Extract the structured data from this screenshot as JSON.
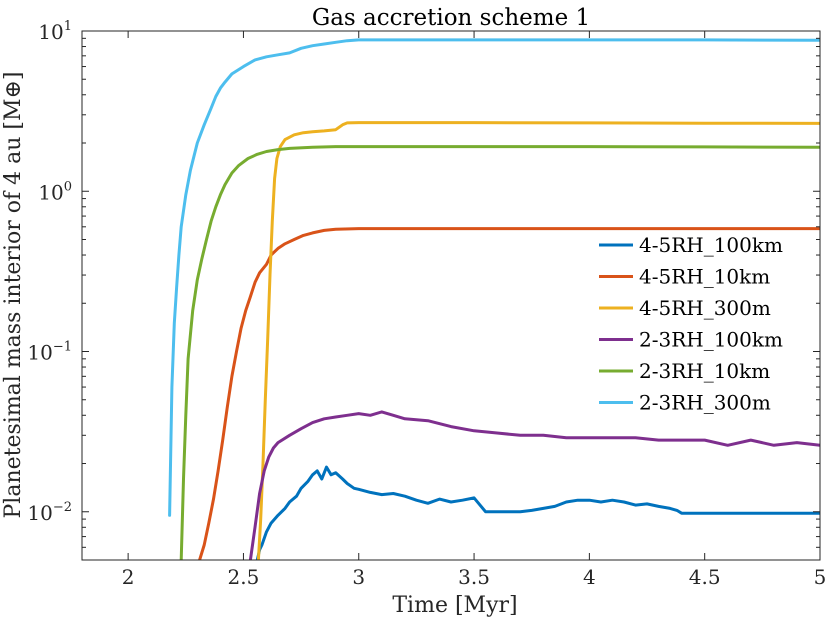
{
  "chart_data": {
    "type": "line",
    "title": "Gas accretion scheme 1",
    "xlabel": "Time [Myr]",
    "ylabel": "Planetesimal mass interior of 4 au [M⊕]",
    "xlim": [
      1.8,
      5.0
    ],
    "ylim": [
      0.005,
      10
    ],
    "yscale": "log",
    "xticks": [
      2,
      2.5,
      3,
      3.5,
      4,
      4.5,
      5
    ],
    "xtick_labels": [
      "2",
      "2.5",
      "3",
      "3.5",
      "4",
      "4.5",
      "5"
    ],
    "yticks": [
      {
        "value": 0.01,
        "base": "10",
        "exp": "−2"
      },
      {
        "value": 0.1,
        "base": "10",
        "exp": "−1"
      },
      {
        "value": 1,
        "base": "10",
        "exp": "0"
      },
      {
        "value": 10,
        "base": "10",
        "exp": "1"
      }
    ],
    "legend_location": "right",
    "series": [
      {
        "name": "4-5RH_100km",
        "color": "#0072BD",
        "points": [
          [
            2.56,
            0.005
          ],
          [
            2.57,
            0.0058
          ],
          [
            2.58,
            0.0062
          ],
          [
            2.6,
            0.0075
          ],
          [
            2.62,
            0.0085
          ],
          [
            2.65,
            0.0095
          ],
          [
            2.68,
            0.0105
          ],
          [
            2.7,
            0.0115
          ],
          [
            2.73,
            0.0125
          ],
          [
            2.75,
            0.014
          ],
          [
            2.78,
            0.0155
          ],
          [
            2.8,
            0.017
          ],
          [
            2.82,
            0.018
          ],
          [
            2.84,
            0.016
          ],
          [
            2.86,
            0.019
          ],
          [
            2.88,
            0.017
          ],
          [
            2.9,
            0.0175
          ],
          [
            2.93,
            0.016
          ],
          [
            2.95,
            0.015
          ],
          [
            2.98,
            0.014
          ],
          [
            3.0,
            0.0138
          ],
          [
            3.05,
            0.0132
          ],
          [
            3.1,
            0.0128
          ],
          [
            3.15,
            0.013
          ],
          [
            3.2,
            0.0125
          ],
          [
            3.25,
            0.0118
          ],
          [
            3.3,
            0.0113
          ],
          [
            3.35,
            0.012
          ],
          [
            3.4,
            0.0115
          ],
          [
            3.45,
            0.0118
          ],
          [
            3.5,
            0.0122
          ],
          [
            3.55,
            0.01
          ],
          [
            3.6,
            0.01
          ],
          [
            3.65,
            0.01
          ],
          [
            3.7,
            0.01
          ],
          [
            3.75,
            0.0102
          ],
          [
            3.8,
            0.0105
          ],
          [
            3.85,
            0.0108
          ],
          [
            3.9,
            0.0115
          ],
          [
            3.95,
            0.0118
          ],
          [
            4.0,
            0.0118
          ],
          [
            4.05,
            0.0115
          ],
          [
            4.1,
            0.0118
          ],
          [
            4.15,
            0.0115
          ],
          [
            4.2,
            0.011
          ],
          [
            4.25,
            0.0112
          ],
          [
            4.3,
            0.0108
          ],
          [
            4.35,
            0.0105
          ],
          [
            4.38,
            0.0102
          ],
          [
            4.4,
            0.0098
          ],
          [
            4.5,
            0.0098
          ],
          [
            4.6,
            0.0098
          ],
          [
            4.7,
            0.0098
          ],
          [
            4.8,
            0.0098
          ],
          [
            4.9,
            0.0098
          ],
          [
            5.0,
            0.0098
          ]
        ]
      },
      {
        "name": "4-5RH_10km",
        "color": "#D95319",
        "points": [
          [
            2.31,
            0.005
          ],
          [
            2.33,
            0.0062
          ],
          [
            2.35,
            0.0085
          ],
          [
            2.37,
            0.012
          ],
          [
            2.39,
            0.018
          ],
          [
            2.41,
            0.028
          ],
          [
            2.43,
            0.045
          ],
          [
            2.45,
            0.07
          ],
          [
            2.47,
            0.1
          ],
          [
            2.49,
            0.14
          ],
          [
            2.51,
            0.18
          ],
          [
            2.53,
            0.22
          ],
          [
            2.55,
            0.27
          ],
          [
            2.57,
            0.31
          ],
          [
            2.6,
            0.35
          ],
          [
            2.62,
            0.4
          ],
          [
            2.65,
            0.44
          ],
          [
            2.68,
            0.47
          ],
          [
            2.72,
            0.5
          ],
          [
            2.76,
            0.53
          ],
          [
            2.8,
            0.55
          ],
          [
            2.85,
            0.57
          ],
          [
            2.9,
            0.58
          ],
          [
            3.0,
            0.585
          ],
          [
            3.5,
            0.585
          ],
          [
            4.0,
            0.585
          ],
          [
            4.5,
            0.585
          ],
          [
            5.0,
            0.585
          ]
        ]
      },
      {
        "name": "4-5RH_300m",
        "color": "#EDB120",
        "points": [
          [
            2.565,
            0.005
          ],
          [
            2.575,
            0.009
          ],
          [
            2.585,
            0.02
          ],
          [
            2.595,
            0.05
          ],
          [
            2.605,
            0.12
          ],
          [
            2.615,
            0.3
          ],
          [
            2.625,
            0.65
          ],
          [
            2.635,
            1.2
          ],
          [
            2.645,
            1.6
          ],
          [
            2.66,
            1.9
          ],
          [
            2.68,
            2.1
          ],
          [
            2.72,
            2.25
          ],
          [
            2.76,
            2.32
          ],
          [
            2.8,
            2.35
          ],
          [
            2.85,
            2.38
          ],
          [
            2.9,
            2.42
          ],
          [
            2.93,
            2.6
          ],
          [
            2.95,
            2.67
          ],
          [
            3.0,
            2.68
          ],
          [
            3.5,
            2.68
          ],
          [
            4.0,
            2.67
          ],
          [
            4.5,
            2.66
          ],
          [
            5.0,
            2.65
          ]
        ]
      },
      {
        "name": "2-3RH_100km",
        "color": "#7E2F8E",
        "points": [
          [
            2.53,
            0.005
          ],
          [
            2.55,
            0.008
          ],
          [
            2.57,
            0.013
          ],
          [
            2.59,
            0.018
          ],
          [
            2.61,
            0.022
          ],
          [
            2.63,
            0.025
          ],
          [
            2.65,
            0.027
          ],
          [
            2.7,
            0.03
          ],
          [
            2.75,
            0.033
          ],
          [
            2.8,
            0.036
          ],
          [
            2.85,
            0.038
          ],
          [
            2.9,
            0.039
          ],
          [
            2.95,
            0.04
          ],
          [
            3.0,
            0.041
          ],
          [
            3.05,
            0.04
          ],
          [
            3.1,
            0.042
          ],
          [
            3.15,
            0.04
          ],
          [
            3.2,
            0.038
          ],
          [
            3.3,
            0.037
          ],
          [
            3.4,
            0.034
          ],
          [
            3.5,
            0.032
          ],
          [
            3.6,
            0.031
          ],
          [
            3.7,
            0.03
          ],
          [
            3.8,
            0.03
          ],
          [
            3.9,
            0.029
          ],
          [
            4.0,
            0.029
          ],
          [
            4.1,
            0.029
          ],
          [
            4.2,
            0.029
          ],
          [
            4.3,
            0.028
          ],
          [
            4.4,
            0.028
          ],
          [
            4.5,
            0.028
          ],
          [
            4.6,
            0.026
          ],
          [
            4.7,
            0.028
          ],
          [
            4.8,
            0.026
          ],
          [
            4.9,
            0.027
          ],
          [
            5.0,
            0.026
          ]
        ]
      },
      {
        "name": "2-3RH_10km",
        "color": "#77AC30",
        "points": [
          [
            2.23,
            0.005
          ],
          [
            2.24,
            0.016
          ],
          [
            2.25,
            0.04
          ],
          [
            2.26,
            0.09
          ],
          [
            2.28,
            0.18
          ],
          [
            2.3,
            0.28
          ],
          [
            2.32,
            0.38
          ],
          [
            2.34,
            0.5
          ],
          [
            2.36,
            0.65
          ],
          [
            2.38,
            0.8
          ],
          [
            2.4,
            0.95
          ],
          [
            2.42,
            1.1
          ],
          [
            2.45,
            1.3
          ],
          [
            2.48,
            1.45
          ],
          [
            2.52,
            1.6
          ],
          [
            2.56,
            1.7
          ],
          [
            2.6,
            1.77
          ],
          [
            2.65,
            1.82
          ],
          [
            2.7,
            1.85
          ],
          [
            2.8,
            1.88
          ],
          [
            2.9,
            1.9
          ],
          [
            3.0,
            1.9
          ],
          [
            3.5,
            1.9
          ],
          [
            4.0,
            1.9
          ],
          [
            4.5,
            1.89
          ],
          [
            5.0,
            1.88
          ]
        ]
      },
      {
        "name": "2-3RH_300m",
        "color": "#4DBEEE",
        "points": [
          [
            2.18,
            0.0095
          ],
          [
            2.19,
            0.06
          ],
          [
            2.2,
            0.15
          ],
          [
            2.21,
            0.25
          ],
          [
            2.22,
            0.4
          ],
          [
            2.23,
            0.6
          ],
          [
            2.25,
            0.95
          ],
          [
            2.27,
            1.35
          ],
          [
            2.3,
            2.0
          ],
          [
            2.33,
            2.6
          ],
          [
            2.36,
            3.3
          ],
          [
            2.38,
            3.9
          ],
          [
            2.4,
            4.4
          ],
          [
            2.42,
            4.8
          ],
          [
            2.45,
            5.4
          ],
          [
            2.5,
            6.0
          ],
          [
            2.55,
            6.6
          ],
          [
            2.6,
            6.9
          ],
          [
            2.65,
            7.1
          ],
          [
            2.7,
            7.3
          ],
          [
            2.75,
            7.8
          ],
          [
            2.8,
            8.1
          ],
          [
            2.85,
            8.3
          ],
          [
            2.9,
            8.5
          ],
          [
            2.95,
            8.7
          ],
          [
            3.0,
            8.8
          ],
          [
            3.5,
            8.8
          ],
          [
            4.0,
            8.8
          ],
          [
            4.5,
            8.8
          ],
          [
            5.0,
            8.75
          ]
        ]
      }
    ]
  }
}
